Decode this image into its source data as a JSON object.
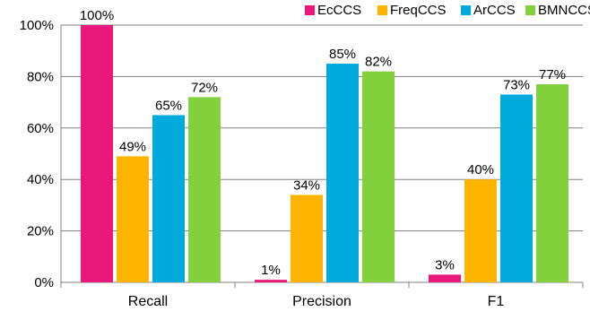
{
  "chart_data": {
    "type": "bar",
    "categories": [
      "Recall",
      "Precision",
      "F1"
    ],
    "series": [
      {
        "name": "EcCCS",
        "color": "#E8197A",
        "values": [
          100,
          1,
          3
        ],
        "labels": [
          "100%",
          "1%",
          "3%"
        ]
      },
      {
        "name": "FreqCCS",
        "color": "#FFB400",
        "values": [
          49,
          34,
          40
        ],
        "labels": [
          "49%",
          "34%",
          "40%"
        ]
      },
      {
        "name": "ArCCS",
        "color": "#00AADC",
        "values": [
          65,
          85,
          73
        ],
        "labels": [
          "65%",
          "85%",
          "73%"
        ]
      },
      {
        "name": "BMNCCS",
        "color": "#82D03C",
        "values": [
          72,
          82,
          77
        ],
        "labels": [
          "72%",
          "82%",
          "77%"
        ]
      }
    ],
    "y_ticks": [
      0,
      20,
      40,
      60,
      80,
      100
    ],
    "y_tick_labels": [
      "0%",
      "20%",
      "40%",
      "60%",
      "80%",
      "100%"
    ],
    "ylim": [
      0,
      100
    ],
    "legend_position": "top-right",
    "grid": true
  }
}
